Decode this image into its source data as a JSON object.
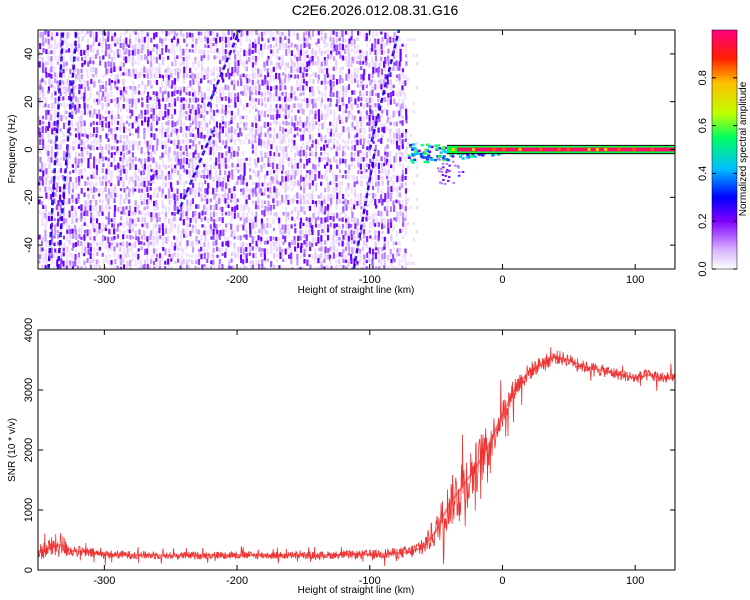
{
  "title": "C2E6.2026.012.08.31.G16",
  "chart_data": [
    {
      "type": "heatmap",
      "xlabel": "Height of straight line (km)",
      "ylabel": "Frequency (Hz)",
      "xlim": [
        -350,
        130
      ],
      "ylim": [
        -50,
        50
      ],
      "xticks": [
        -300,
        -200,
        -100,
        0,
        100
      ],
      "yticks": [
        -40,
        -20,
        0,
        20,
        40
      ],
      "colorbar": {
        "label": "Normalized spectral amplitude",
        "range": [
          0,
          1
        ],
        "ticks": [
          "0.0",
          "0.2",
          "0.4",
          "0.6",
          "0.8"
        ],
        "colors": [
          "#ffffff",
          "#d9b3ff",
          "#8000ff",
          "#0000ff",
          "#00c0ff",
          "#00ff60",
          "#c0ff00",
          "#ffc000",
          "#ff2000",
          "#ff0080"
        ]
      },
      "features": {
        "noise_region_x": [
          -350,
          -72
        ],
        "carrier_start_x": -72,
        "carrier_frequency": 0,
        "carrier_band_halfwidth": 1.5,
        "streaks": [
          {
            "x": [
              -342,
              -331
            ],
            "y": [
              -50,
              50
            ]
          },
          {
            "x": [
              -335,
              -321
            ],
            "y": [
              -50,
              50
            ]
          },
          {
            "x": [
              -245,
              -218
            ],
            "y": [
              -27,
              8
            ]
          },
          {
            "x": [
              -222,
              -198
            ],
            "y": [
              18,
              50
            ]
          },
          {
            "x": [
              -112,
              -96
            ],
            "y": [
              -50,
              0
            ]
          },
          {
            "x": [
              -100,
              -78
            ],
            "y": [
              0,
              50
            ]
          }
        ]
      }
    },
    {
      "type": "line",
      "xlabel": "Height of straight line (km)",
      "ylabel": "SNR (10 * v/v)",
      "xlim": [
        -350,
        130
      ],
      "ylim": [
        0,
        4000
      ],
      "xticks": [
        -300,
        -200,
        -100,
        0,
        100
      ],
      "yticks": [
        0,
        1000,
        2000,
        3000,
        4000
      ],
      "color": "#ee3333",
      "series": [
        {
          "x": [
            -350,
            -340,
            -333,
            -325,
            -300,
            -250,
            -200,
            -150,
            -100,
            -80,
            -70,
            -60,
            -50,
            -40,
            -30,
            -20,
            -10,
            0,
            10,
            20,
            30,
            40,
            50,
            60,
            70,
            80,
            90,
            100,
            110,
            120,
            130
          ],
          "y": [
            300,
            380,
            420,
            320,
            260,
            240,
            250,
            240,
            260,
            280,
            300,
            380,
            650,
            1100,
            1400,
            1700,
            2100,
            2600,
            3050,
            3300,
            3450,
            3550,
            3500,
            3400,
            3350,
            3300,
            3250,
            3200,
            3250,
            3200,
            3200
          ],
          "spread": [
            250,
            350,
            450,
            200,
            150,
            120,
            130,
            120,
            150,
            180,
            220,
            300,
            500,
            800,
            1000,
            900,
            700,
            500,
            400,
            300,
            250,
            250,
            220,
            200,
            200,
            200,
            200,
            200,
            200,
            200,
            200
          ]
        }
      ]
    }
  ]
}
